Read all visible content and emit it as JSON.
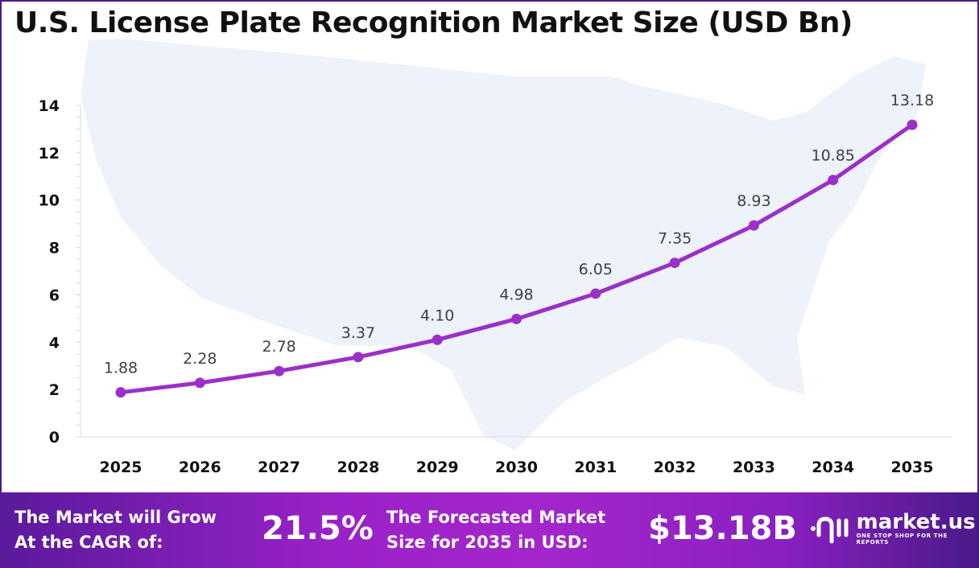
{
  "chart_data": {
    "type": "line",
    "title": "U.S. License Plate Recognition Market Size (USD Bn)",
    "xlabel": "",
    "ylabel": "",
    "categories": [
      "2025",
      "2026",
      "2027",
      "2028",
      "2029",
      "2030",
      "2031",
      "2032",
      "2033",
      "2034",
      "2035"
    ],
    "series": [
      {
        "name": "Market Size",
        "values": [
          1.88,
          2.28,
          2.78,
          3.37,
          4.1,
          4.98,
          6.05,
          7.35,
          8.93,
          10.85,
          13.18
        ]
      }
    ],
    "data_labels": [
      "1.88",
      "2.28",
      "2.78",
      "3.37",
      "4.10",
      "4.98",
      "6.05",
      "7.35",
      "8.93",
      "10.85",
      "13.18"
    ],
    "yticks": [
      "0",
      "2",
      "4",
      "6",
      "8",
      "10",
      "12",
      "14"
    ],
    "ylim": [
      0,
      14
    ],
    "grid": false,
    "line_color": "#9b2fc9"
  },
  "footer": {
    "cagr_label_1": "The Market will Grow",
    "cagr_label_2": "At the CAGR of:",
    "cagr_value": "21.5%",
    "forecast_label_1": "The Forecasted Market",
    "forecast_label_2": "Size for 2035 in USD:",
    "forecast_value": "$13.18B",
    "brand_name": "market.us",
    "brand_tagline": "ONE STOP SHOP FOR THE REPORTS"
  }
}
